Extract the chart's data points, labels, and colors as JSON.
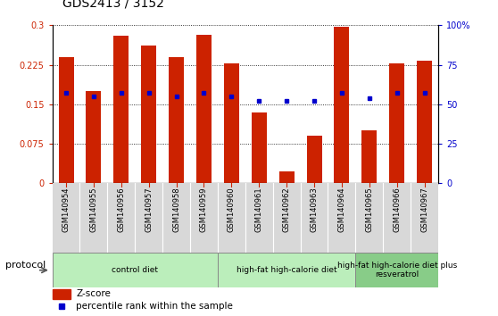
{
  "title": "GDS2413 / 3152",
  "samples": [
    "GSM140954",
    "GSM140955",
    "GSM140956",
    "GSM140957",
    "GSM140958",
    "GSM140959",
    "GSM140960",
    "GSM140961",
    "GSM140962",
    "GSM140963",
    "GSM140964",
    "GSM140965",
    "GSM140966",
    "GSM140967"
  ],
  "zscore": [
    0.24,
    0.175,
    0.28,
    0.262,
    0.24,
    0.282,
    0.227,
    0.135,
    0.022,
    0.09,
    0.297,
    0.1,
    0.228,
    0.232
  ],
  "percentile": [
    57,
    55,
    57,
    57,
    55,
    57,
    55,
    52,
    52,
    52,
    57,
    54,
    57,
    57
  ],
  "group_boundaries": [
    {
      "start": 0,
      "end": 5,
      "label": "control diet",
      "color": "#bbeebb"
    },
    {
      "start": 6,
      "end": 10,
      "label": "high-fat high-calorie diet",
      "color": "#bbeebb"
    },
    {
      "start": 11,
      "end": 13,
      "label": "high-fat high-calorie diet plus\nresveratrol",
      "color": "#88cc88"
    }
  ],
  "bar_color": "#cc2200",
  "dot_color": "#0000cc",
  "ylim_left": [
    0,
    0.3
  ],
  "ylim_right": [
    0,
    100
  ],
  "yticks_left": [
    0,
    0.075,
    0.15,
    0.225,
    0.3
  ],
  "ytick_labels_left": [
    "0",
    "0.075",
    "0.15",
    "0.225",
    "0.3"
  ],
  "yticks_right": [
    0,
    25,
    50,
    75,
    100
  ],
  "ytick_labels_right": [
    "0",
    "25",
    "50",
    "75",
    "100%"
  ],
  "legend_zscore": "Z-score",
  "legend_percentile": "percentile rank within the sample",
  "protocol_label": "protocol",
  "title_fontsize": 10,
  "tick_fontsize": 7,
  "sample_fontsize": 6,
  "legend_fontsize": 7.5,
  "proto_fontsize": 8,
  "bar_width": 0.55
}
